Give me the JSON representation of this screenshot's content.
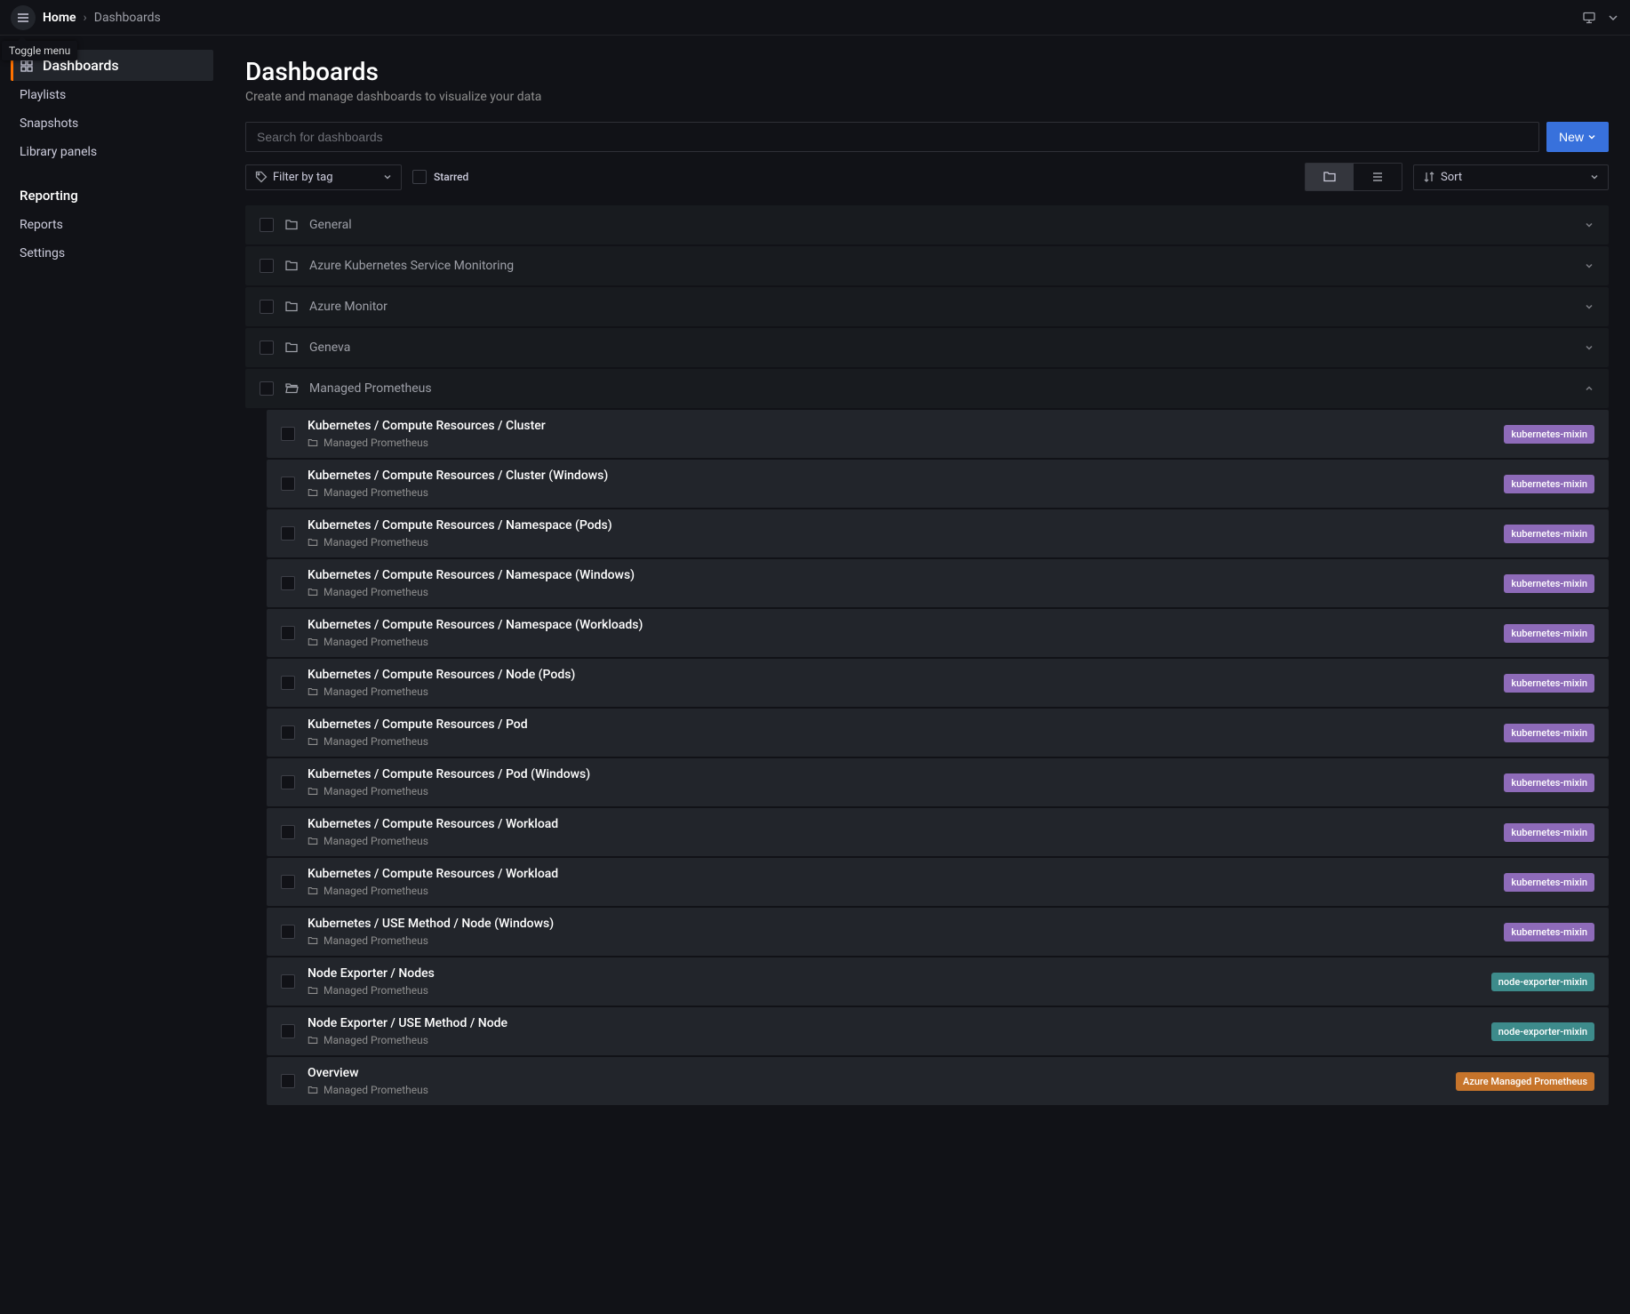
{
  "tooltip": "Toggle menu",
  "breadcrumb": {
    "home": "Home",
    "current": "Dashboards"
  },
  "sidebar": {
    "nav": [
      {
        "label": "Dashboards",
        "active": true,
        "icon": "apps"
      },
      {
        "label": "Playlists",
        "active": false
      },
      {
        "label": "Snapshots",
        "active": false
      },
      {
        "label": "Library panels",
        "active": false
      }
    ],
    "section_title": "Reporting",
    "section_items": [
      {
        "label": "Reports"
      },
      {
        "label": "Settings"
      }
    ]
  },
  "page": {
    "title": "Dashboards",
    "subtitle": "Create and manage dashboards to visualize your data",
    "search_placeholder": "Search for dashboards",
    "new_button": "New",
    "filter_by_tag": "Filter by tag",
    "starred_label": "Starred",
    "sort_label": "Sort"
  },
  "tag_colors": {
    "kubernetes-mixin": "#8e6bb9",
    "node-exporter-mixin": "#3d8b8b",
    "Azure Managed Prometheus": "#c6742b"
  },
  "folders": [
    {
      "label": "General",
      "expanded": false
    },
    {
      "label": "Azure Kubernetes Service Monitoring",
      "expanded": false
    },
    {
      "label": "Azure Monitor",
      "expanded": false
    },
    {
      "label": "Geneva",
      "expanded": false
    },
    {
      "label": "Managed Prometheus",
      "expanded": true
    }
  ],
  "dashboards": [
    {
      "title": "Kubernetes / Compute Resources / Cluster",
      "folder": "Managed Prometheus",
      "tag": "kubernetes-mixin"
    },
    {
      "title": "Kubernetes / Compute Resources / Cluster (Windows)",
      "folder": "Managed Prometheus",
      "tag": "kubernetes-mixin"
    },
    {
      "title": "Kubernetes / Compute Resources / Namespace (Pods)",
      "folder": "Managed Prometheus",
      "tag": "kubernetes-mixin"
    },
    {
      "title": "Kubernetes / Compute Resources / Namespace (Windows)",
      "folder": "Managed Prometheus",
      "tag": "kubernetes-mixin"
    },
    {
      "title": "Kubernetes / Compute Resources / Namespace (Workloads)",
      "folder": "Managed Prometheus",
      "tag": "kubernetes-mixin"
    },
    {
      "title": "Kubernetes / Compute Resources / Node (Pods)",
      "folder": "Managed Prometheus",
      "tag": "kubernetes-mixin"
    },
    {
      "title": "Kubernetes / Compute Resources / Pod",
      "folder": "Managed Prometheus",
      "tag": "kubernetes-mixin"
    },
    {
      "title": "Kubernetes / Compute Resources / Pod (Windows)",
      "folder": "Managed Prometheus",
      "tag": "kubernetes-mixin"
    },
    {
      "title": "Kubernetes / Compute Resources / Workload",
      "folder": "Managed Prometheus",
      "tag": "kubernetes-mixin"
    },
    {
      "title": "Kubernetes / Compute Resources / Workload",
      "folder": "Managed Prometheus",
      "tag": "kubernetes-mixin"
    },
    {
      "title": "Kubernetes / USE Method / Node (Windows)",
      "folder": "Managed Prometheus",
      "tag": "kubernetes-mixin"
    },
    {
      "title": "Node Exporter / Nodes",
      "folder": "Managed Prometheus",
      "tag": "node-exporter-mixin"
    },
    {
      "title": "Node Exporter / USE Method / Node",
      "folder": "Managed Prometheus",
      "tag": "node-exporter-mixin"
    },
    {
      "title": "Overview",
      "folder": "Managed Prometheus",
      "tag": "Azure Managed Prometheus"
    }
  ]
}
